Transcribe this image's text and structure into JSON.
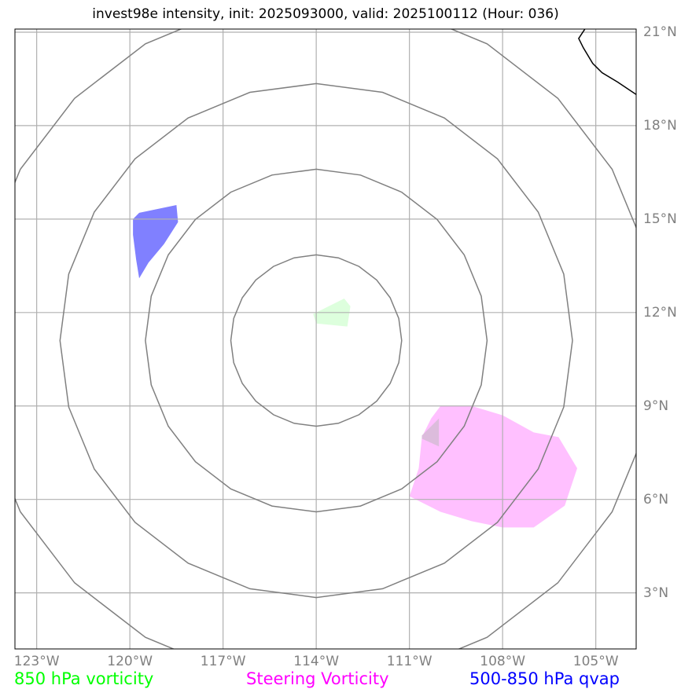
{
  "title": "invest98e intensity, init: 2025093000, valid: 2025100112 (Hour: 036)",
  "map": {
    "lon_min": -123.7,
    "lon_max": -103.7,
    "lat_min": 1.2,
    "lat_max": 21.1,
    "lon_ticks": [
      {
        "value": -123,
        "label": "123°W"
      },
      {
        "value": -120,
        "label": "120°W"
      },
      {
        "value": -117,
        "label": "117°W"
      },
      {
        "value": -114,
        "label": "114°W"
      },
      {
        "value": -111,
        "label": "111°W"
      },
      {
        "value": -108,
        "label": "108°W"
      },
      {
        "value": -105,
        "label": "105°W"
      }
    ],
    "lat_ticks": [
      {
        "value": 21,
        "label": "21°N"
      },
      {
        "value": 18,
        "label": "18°N"
      },
      {
        "value": 15,
        "label": "15°N"
      },
      {
        "value": 12,
        "label": "12°N"
      },
      {
        "value": 9,
        "label": "9°N"
      },
      {
        "value": 6,
        "label": "6°N"
      },
      {
        "value": 3,
        "label": "3°N"
      }
    ],
    "range_rings": {
      "center": {
        "lon": -114.0,
        "lat": 11.1
      },
      "radii_deg": [
        2.75,
        5.5,
        8.25,
        11.0
      ]
    },
    "features": [
      {
        "name": "qvap-blob-west",
        "type": "500-850 hPa qvap",
        "color": "#8080ff",
        "coords": [
          [
            -119.9,
            15.0
          ],
          [
            -119.7,
            15.2
          ],
          [
            -118.5,
            15.45
          ],
          [
            -118.45,
            14.9
          ],
          [
            -118.9,
            14.2
          ],
          [
            -119.4,
            13.6
          ],
          [
            -119.7,
            13.1
          ],
          [
            -119.8,
            13.7
          ],
          [
            -119.9,
            14.5
          ]
        ]
      },
      {
        "name": "vorticity-850-blob-center",
        "type": "850 hPa vorticity",
        "color": "#ddffdd",
        "coords": [
          [
            -114.1,
            11.95
          ],
          [
            -113.1,
            12.45
          ],
          [
            -112.9,
            12.2
          ],
          [
            -113.0,
            11.55
          ],
          [
            -114.0,
            11.65
          ]
        ]
      },
      {
        "name": "steering-vorticity-blob-southeast",
        "type": "Steering Vorticity",
        "color": "#ffc0ff",
        "coords": [
          [
            -110.0,
            9.0
          ],
          [
            -109.0,
            9.0
          ],
          [
            -108.0,
            8.7
          ],
          [
            -107.0,
            8.15
          ],
          [
            -106.2,
            8.0
          ],
          [
            -105.6,
            7.0
          ],
          [
            -106.0,
            5.8
          ],
          [
            -107.0,
            5.1
          ],
          [
            -108.0,
            5.1
          ],
          [
            -109.0,
            5.3
          ],
          [
            -110.0,
            5.6
          ],
          [
            -111.0,
            6.1
          ],
          [
            -110.7,
            7.0
          ],
          [
            -110.6,
            8.0
          ],
          [
            -110.3,
            8.6
          ]
        ]
      },
      {
        "name": "overlap-blob-southeast",
        "type": "overlap",
        "color": "#dcbcdc",
        "coords": [
          [
            -110.6,
            8.05
          ],
          [
            -110.05,
            8.6
          ],
          [
            -110.05,
            7.7
          ],
          [
            -110.6,
            7.95
          ]
        ]
      },
      {
        "name": "coastline-mexico",
        "type": "coastline",
        "color": "#000000",
        "coords": [
          [
            -105.35,
            21.1
          ],
          [
            -105.55,
            20.8
          ],
          [
            -105.4,
            20.5
          ],
          [
            -105.1,
            20.0
          ],
          [
            -104.8,
            19.7
          ],
          [
            -104.3,
            19.4
          ],
          [
            -103.7,
            19.0
          ]
        ]
      }
    ]
  },
  "legend": [
    {
      "label": "850 hPa vorticity",
      "color": "#00ff00"
    },
    {
      "label": "Steering Vorticity",
      "color": "#ff00ff"
    },
    {
      "label": "500-850 hPa qvap",
      "color": "#0000ff"
    }
  ]
}
